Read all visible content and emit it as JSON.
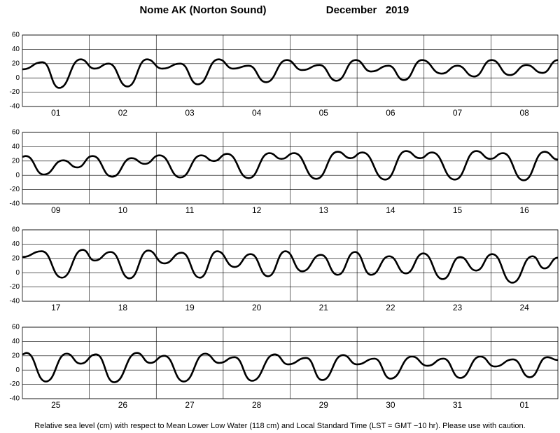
{
  "title": "Nome AK (Norton Sound)",
  "subtitle": "December   2019",
  "footnote": "Relative sea level (cm) with respect to Mean Lower Low Water (118 cm) and Local Standard Time (LST = GMT −10 hr). Please use with caution.",
  "chart_data": [
    {
      "type": "line",
      "color": "#000000",
      "grid": true,
      "ylim": [
        -40,
        60
      ],
      "yticks": [
        -40,
        -20,
        0,
        20,
        40,
        60
      ],
      "xlim": [
        0,
        8
      ],
      "categories": [
        "01",
        "02",
        "03",
        "04",
        "05",
        "06",
        "07",
        "08"
      ],
      "x": [
        0,
        0.3,
        0.55,
        0.87,
        1.08,
        1.29,
        1.57,
        1.86,
        2.09,
        2.36,
        2.62,
        2.93,
        3.15,
        3.38,
        3.64,
        3.95,
        4.18,
        4.44,
        4.69,
        4.98,
        5.21,
        5.47,
        5.7,
        5.97,
        6.26,
        6.5,
        6.75,
        7.01,
        7.28,
        7.53,
        7.77,
        8.0
      ],
      "values": [
        12,
        22,
        -14,
        26,
        13,
        20,
        -12,
        26,
        13,
        20,
        -9,
        26,
        13,
        17,
        -6,
        25,
        11,
        18,
        -4,
        25,
        9,
        17,
        -3,
        25,
        6,
        17,
        2,
        25,
        4,
        18,
        7,
        25
      ]
    },
    {
      "type": "line",
      "color": "#000000",
      "grid": true,
      "ylim": [
        -40,
        60
      ],
      "yticks": [
        -40,
        -20,
        0,
        20,
        40,
        60
      ],
      "xlim": [
        0,
        8
      ],
      "categories": [
        "09",
        "10",
        "11",
        "12",
        "13",
        "14",
        "15",
        "16"
      ],
      "x": [
        0,
        0.05,
        0.32,
        0.61,
        0.82,
        1.05,
        1.34,
        1.63,
        1.83,
        2.05,
        2.36,
        2.67,
        2.86,
        3.06,
        3.38,
        3.69,
        3.87,
        4.06,
        4.39,
        4.71,
        4.9,
        5.08,
        5.42,
        5.73,
        5.94,
        6.12,
        6.46,
        6.78,
        6.99,
        7.18,
        7.49,
        7.8,
        8.0
      ],
      "values": [
        26,
        27,
        1,
        21,
        11,
        27,
        -2,
        24,
        16,
        28,
        -3,
        28,
        20,
        30,
        -4,
        31,
        23,
        31,
        -5,
        33,
        24,
        32,
        -6,
        34,
        24,
        32,
        -6,
        34,
        23,
        31,
        -7,
        33,
        22
      ]
    },
    {
      "type": "line",
      "color": "#000000",
      "grid": true,
      "ylim": [
        -40,
        60
      ],
      "yticks": [
        -40,
        -20,
        0,
        20,
        40,
        60
      ],
      "xlim": [
        0,
        8
      ],
      "categories": [
        "17",
        "18",
        "19",
        "20",
        "21",
        "22",
        "23",
        "24"
      ],
      "x": [
        0,
        0.29,
        0.59,
        0.9,
        1.08,
        1.32,
        1.6,
        1.88,
        2.12,
        2.38,
        2.65,
        2.91,
        3.17,
        3.41,
        3.67,
        3.93,
        4.18,
        4.46,
        4.71,
        4.97,
        5.21,
        5.48,
        5.73,
        5.99,
        6.28,
        6.54,
        6.78,
        7.02,
        7.32,
        7.62,
        7.8,
        8.0
      ],
      "values": [
        22,
        30,
        -7,
        32,
        17,
        29,
        -8,
        31,
        13,
        28,
        -7,
        30,
        8,
        26,
        -5,
        30,
        2,
        25,
        -3,
        29,
        -3,
        23,
        -1,
        27,
        -9,
        22,
        3,
        26,
        -14,
        23,
        6,
        21
      ]
    },
    {
      "type": "line",
      "color": "#000000",
      "grid": true,
      "ylim": [
        -40,
        60
      ],
      "yticks": [
        -40,
        -20,
        0,
        20,
        40,
        60
      ],
      "xlim": [
        0,
        8
      ],
      "categories": [
        "25",
        "26",
        "27",
        "28",
        "29",
        "30",
        "31",
        "01"
      ],
      "x": [
        0,
        0.06,
        0.35,
        0.66,
        0.87,
        1.1,
        1.37,
        1.71,
        1.91,
        2.12,
        2.41,
        2.73,
        2.94,
        3.17,
        3.43,
        3.77,
        3.97,
        4.24,
        4.48,
        4.79,
        5.0,
        5.26,
        5.5,
        5.82,
        6.05,
        6.29,
        6.54,
        6.84,
        7.06,
        7.33,
        7.58,
        7.84,
        8.0
      ],
      "values": [
        22,
        24,
        -16,
        23,
        9,
        22,
        -17,
        24,
        10,
        20,
        -16,
        23,
        10,
        18,
        -15,
        22,
        8,
        17,
        -14,
        21,
        8,
        16,
        -12,
        19,
        6,
        16,
        -11,
        19,
        5,
        15,
        -10,
        18,
        14
      ]
    }
  ]
}
